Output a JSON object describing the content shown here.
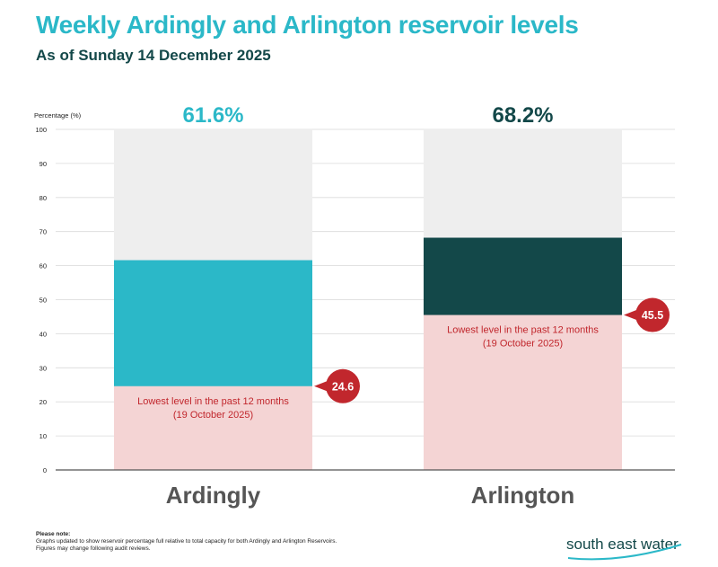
{
  "title": "Weekly Ardingly and Arlington reservoir levels",
  "subtitle": "As of Sunday 14 December 2025",
  "colors": {
    "ardingly_fill": "#2bb8c8",
    "arlington_fill": "#134849",
    "remaining": "#eeeeee",
    "lowest_zone": "#f4d4d4",
    "lowest_text": "#c1272d",
    "axis_text": "#222222",
    "category_text": "#555555"
  },
  "chart_data": {
    "type": "bar",
    "ylabel": "Percentage (%)",
    "ylim": [
      0,
      100
    ],
    "yticks": [
      "0",
      "10",
      "20",
      "30",
      "40",
      "50",
      "60",
      "70",
      "80",
      "90",
      "100"
    ],
    "grid": true,
    "categories": [
      "Ardingly",
      "Arlington"
    ],
    "values": [
      61.6,
      68.2
    ],
    "value_labels": [
      "61.6%",
      "68.2%"
    ],
    "lowest": [
      24.6,
      45.5
    ],
    "lowest_labels": [
      "24.6",
      "45.5"
    ],
    "lowest_text_line1": "Lowest level in the past 12 months",
    "lowest_text_line2": "(19 October 2025)"
  },
  "note": {
    "heading": "Please note:",
    "line1": "Graphs updated to show reservoir percentage full relative to total capacity for both Ardingly and Arlington Reservoirs.",
    "line2": "Figures may change following audit reviews."
  },
  "logo": {
    "text": "south east water"
  }
}
